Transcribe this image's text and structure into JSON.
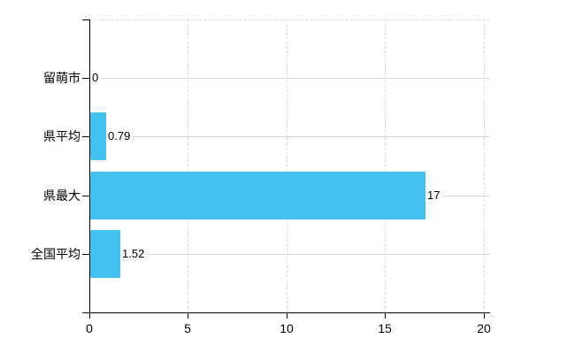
{
  "chart_data": {
    "type": "bar",
    "orientation": "horizontal",
    "title": "",
    "categories": [
      "留萌市",
      "県平均",
      "県最大",
      "全国平均"
    ],
    "values": [
      0,
      0.79,
      17,
      1.52
    ],
    "value_labels": [
      "0",
      "0.79",
      "17",
      "1.52"
    ],
    "xlim": [
      0,
      20
    ],
    "xticks": [
      0,
      5,
      10,
      15,
      20
    ],
    "xtick_labels": [
      "0",
      "5",
      "10",
      "15",
      "20"
    ],
    "grid": true,
    "legend": false,
    "colors": {
      "bar": "#42c3f1",
      "axis": "#000000",
      "gridline": "#d9d9d9",
      "background": "#ffffff",
      "text": "#000000"
    }
  }
}
